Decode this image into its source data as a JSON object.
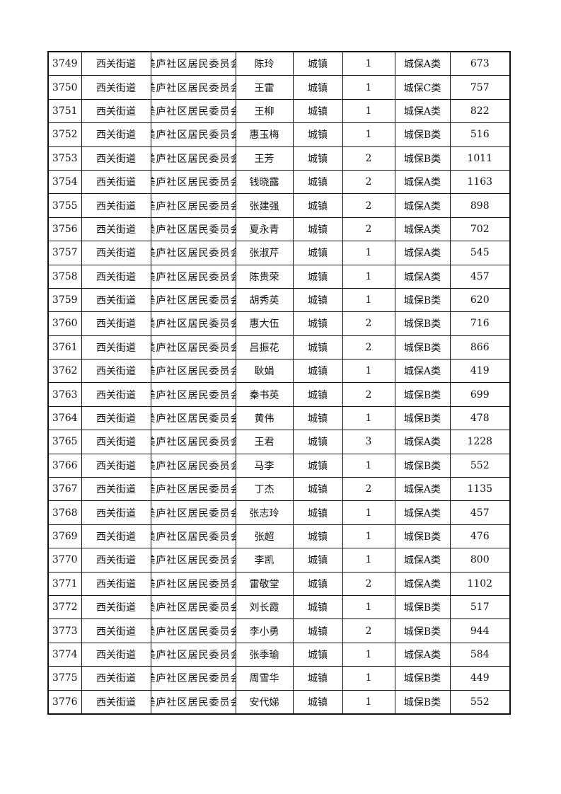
{
  "rows": [
    [
      "3749",
      "西关街道",
      "美庐社区居民委员会",
      "陈玲",
      "城镇",
      "1",
      "城保A类",
      "673"
    ],
    [
      "3750",
      "西关街道",
      "美庐社区居民委员会",
      "王雷",
      "城镇",
      "1",
      "城保C类",
      "757"
    ],
    [
      "3751",
      "西关街道",
      "美庐社区居民委员会",
      "王柳",
      "城镇",
      "1",
      "城保A类",
      "822"
    ],
    [
      "3752",
      "西关街道",
      "美庐社区居民委员会",
      "惠玉梅",
      "城镇",
      "1",
      "城保B类",
      "516"
    ],
    [
      "3753",
      "西关街道",
      "美庐社区居民委员会",
      "王芳",
      "城镇",
      "2",
      "城保B类",
      "1011"
    ],
    [
      "3754",
      "西关街道",
      "美庐社区居民委员会",
      "钱晓露",
      "城镇",
      "2",
      "城保A类",
      "1163"
    ],
    [
      "3755",
      "西关街道",
      "美庐社区居民委员会",
      "张建强",
      "城镇",
      "2",
      "城保A类",
      "898"
    ],
    [
      "3756",
      "西关街道",
      "美庐社区居民委员会",
      "夏永青",
      "城镇",
      "2",
      "城保A类",
      "702"
    ],
    [
      "3757",
      "西关街道",
      "美庐社区居民委员会",
      "张淑芹",
      "城镇",
      "1",
      "城保A类",
      "545"
    ],
    [
      "3758",
      "西关街道",
      "美庐社区居民委员会",
      "陈贵荣",
      "城镇",
      "1",
      "城保A类",
      "457"
    ],
    [
      "3759",
      "西关街道",
      "美庐社区居民委员会",
      "胡秀英",
      "城镇",
      "1",
      "城保B类",
      "620"
    ],
    [
      "3760",
      "西关街道",
      "美庐社区居民委员会",
      "惠大伍",
      "城镇",
      "2",
      "城保B类",
      "716"
    ],
    [
      "3761",
      "西关街道",
      "美庐社区居民委员会",
      "吕振花",
      "城镇",
      "2",
      "城保B类",
      "866"
    ],
    [
      "3762",
      "西关街道",
      "美庐社区居民委员会",
      "耿娟",
      "城镇",
      "1",
      "城保A类",
      "419"
    ],
    [
      "3763",
      "西关街道",
      "美庐社区居民委员会",
      "秦书英",
      "城镇",
      "2",
      "城保B类",
      "699"
    ],
    [
      "3764",
      "西关街道",
      "美庐社区居民委员会",
      "黄伟",
      "城镇",
      "1",
      "城保B类",
      "478"
    ],
    [
      "3765",
      "西关街道",
      "美庐社区居民委员会",
      "王君",
      "城镇",
      "3",
      "城保A类",
      "1228"
    ],
    [
      "3766",
      "西关街道",
      "美庐社区居民委员会",
      "马李",
      "城镇",
      "1",
      "城保B类",
      "552"
    ],
    [
      "3767",
      "西关街道",
      "美庐社区居民委员会",
      "丁杰",
      "城镇",
      "2",
      "城保A类",
      "1135"
    ],
    [
      "3768",
      "西关街道",
      "美庐社区居民委员会",
      "张志玲",
      "城镇",
      "1",
      "城保A类",
      "457"
    ],
    [
      "3769",
      "西关街道",
      "美庐社区居民委员会",
      "张超",
      "城镇",
      "1",
      "城保B类",
      "476"
    ],
    [
      "3770",
      "西关街道",
      "美庐社区居民委员会",
      "李凯",
      "城镇",
      "1",
      "城保A类",
      "800"
    ],
    [
      "3771",
      "西关街道",
      "美庐社区居民委员会",
      "雷敬堂",
      "城镇",
      "2",
      "城保A类",
      "1102"
    ],
    [
      "3772",
      "西关街道",
      "美庐社区居民委员会",
      "刘长霞",
      "城镇",
      "1",
      "城保B类",
      "517"
    ],
    [
      "3773",
      "西关街道",
      "美庐社区居民委员会",
      "李小勇",
      "城镇",
      "2",
      "城保B类",
      "944"
    ],
    [
      "3774",
      "西关街道",
      "美庐社区居民委员会",
      "张季瑜",
      "城镇",
      "1",
      "城保A类",
      "584"
    ],
    [
      "3775",
      "西关街道",
      "美庐社区居民委员会",
      "周雪华",
      "城镇",
      "1",
      "城保B类",
      "449"
    ],
    [
      "3776",
      "西关街道",
      "美庐社区居民委员会",
      "安代娣",
      "城镇",
      "1",
      "城保B类",
      "552"
    ]
  ]
}
